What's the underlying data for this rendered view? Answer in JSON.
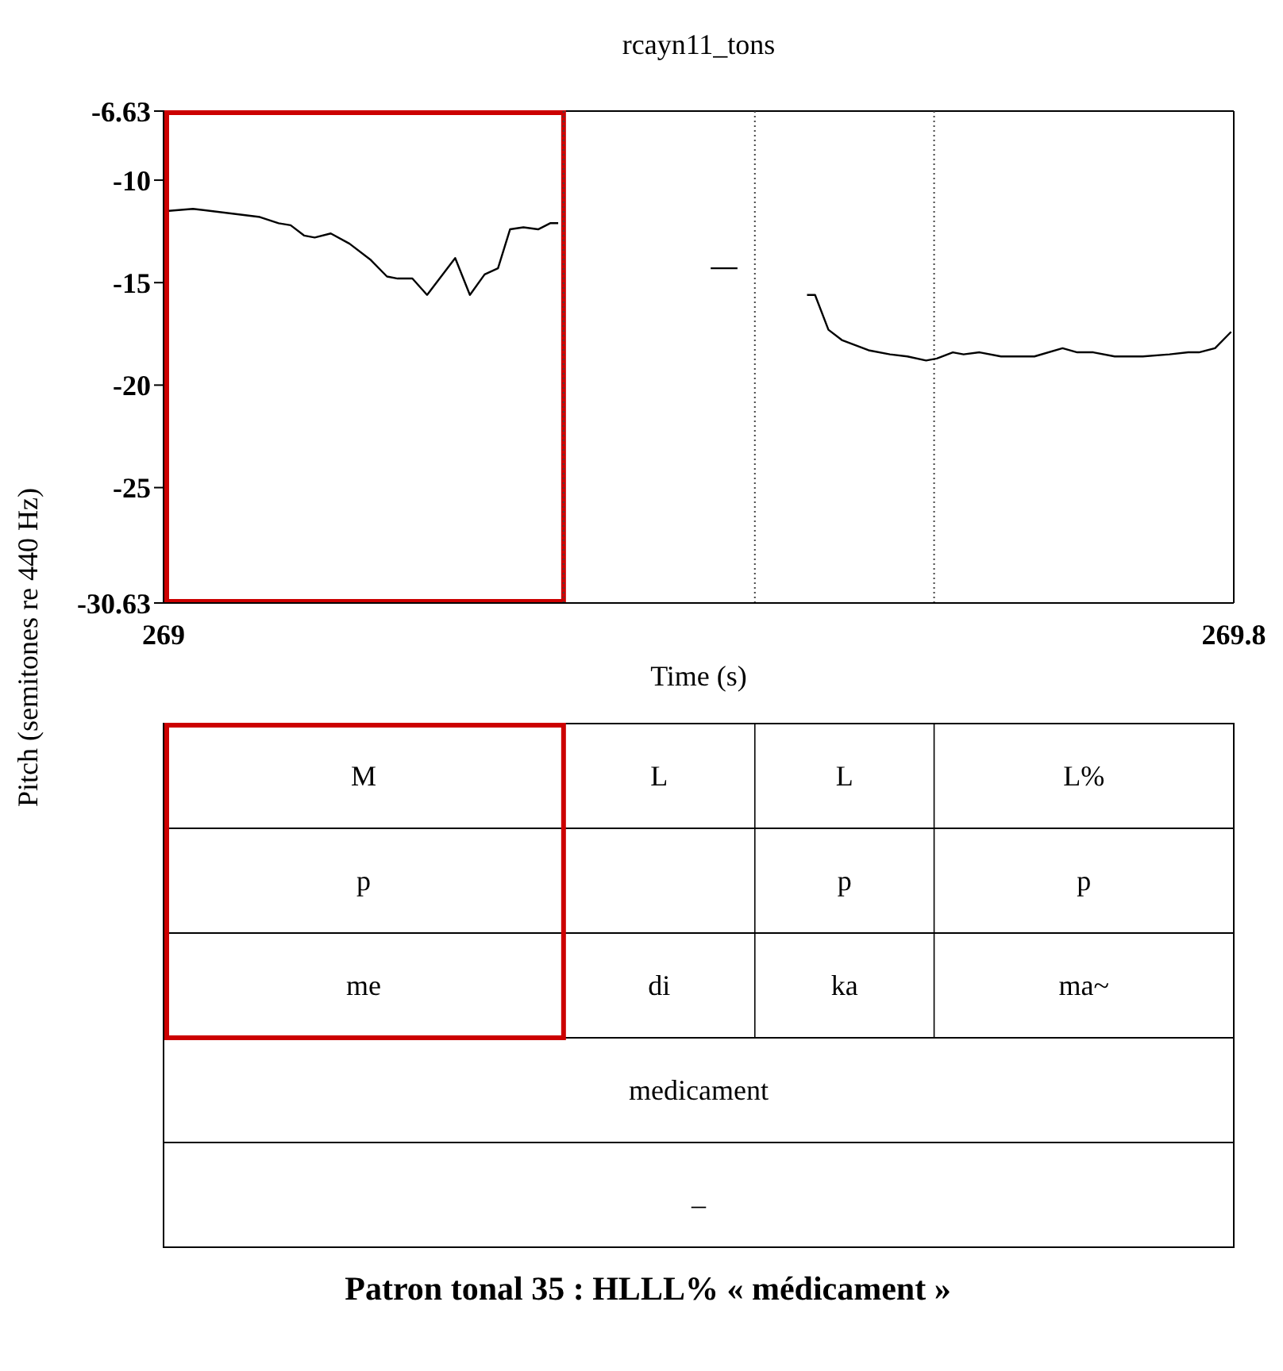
{
  "chart_data": {
    "type": "line",
    "title": "rcayn11_tons",
    "xlabel": "Time (s)",
    "ylabel": "Pitch (semitones re 440 Hz)",
    "xlim": [
      269,
      269.8
    ],
    "xticks": [
      269,
      269.8
    ],
    "ylim": [
      -30.63,
      -6.63
    ],
    "yticks": [
      -30.63,
      -25,
      -20,
      -15,
      -10,
      -6.63
    ],
    "marker": "none",
    "line_style": "solid",
    "series": [
      {
        "color": "#000000",
        "x": [
          269.004,
          269.022,
          269.06,
          269.072,
          269.086,
          269.095,
          269.105,
          269.113,
          269.125,
          269.139,
          269.155,
          269.167,
          269.175,
          269.186,
          269.197,
          269.218,
          269.229,
          269.24,
          269.25,
          269.259,
          269.269,
          269.28,
          269.289,
          269.295,
          269.35,
          269.409,
          269.429,
          269.46,
          269.481,
          269.487,
          269.497,
          269.507,
          269.527,
          269.543,
          269.556,
          269.57,
          269.578,
          269.59,
          269.598,
          269.61,
          269.626,
          269.651,
          269.672,
          269.683,
          269.695,
          269.711,
          269.732,
          269.752,
          269.766,
          269.774,
          269.786,
          269.798
        ],
        "values": [
          -11.5,
          -11.4,
          -11.7,
          -11.8,
          -12.1,
          -12.2,
          -12.7,
          -12.8,
          -12.6,
          -13.1,
          -13.9,
          -14.7,
          -14.8,
          -14.8,
          -15.6,
          -13.8,
          -15.6,
          -14.6,
          -14.3,
          -12.4,
          -12.3,
          -12.4,
          -12.1,
          -12.1,
          null,
          -14.3,
          -14.3,
          null,
          -15.6,
          -15.6,
          -17.3,
          -17.8,
          -18.3,
          -18.5,
          -18.6,
          -18.8,
          -18.7,
          -18.4,
          -18.5,
          -18.4,
          -18.6,
          -18.6,
          -18.2,
          -18.4,
          -18.4,
          -18.6,
          -18.6,
          -18.5,
          -18.4,
          -18.4,
          -18.2,
          -17.4
        ]
      }
    ],
    "ref_lines": [
      {
        "axis": "x",
        "value": 269.299,
        "line_style": "dotted"
      },
      {
        "axis": "x",
        "value": 269.442,
        "line_style": "dotted"
      },
      {
        "axis": "x",
        "value": 269.576,
        "line_style": "dotted"
      }
    ],
    "annotations": [
      "M",
      "L",
      "L",
      "L%",
      "p",
      "p",
      "p",
      "me",
      "di",
      "ka",
      "ma~",
      "medicament",
      "_",
      "Patron tonal 35 : HLLL% « médicament »"
    ]
  }
}
